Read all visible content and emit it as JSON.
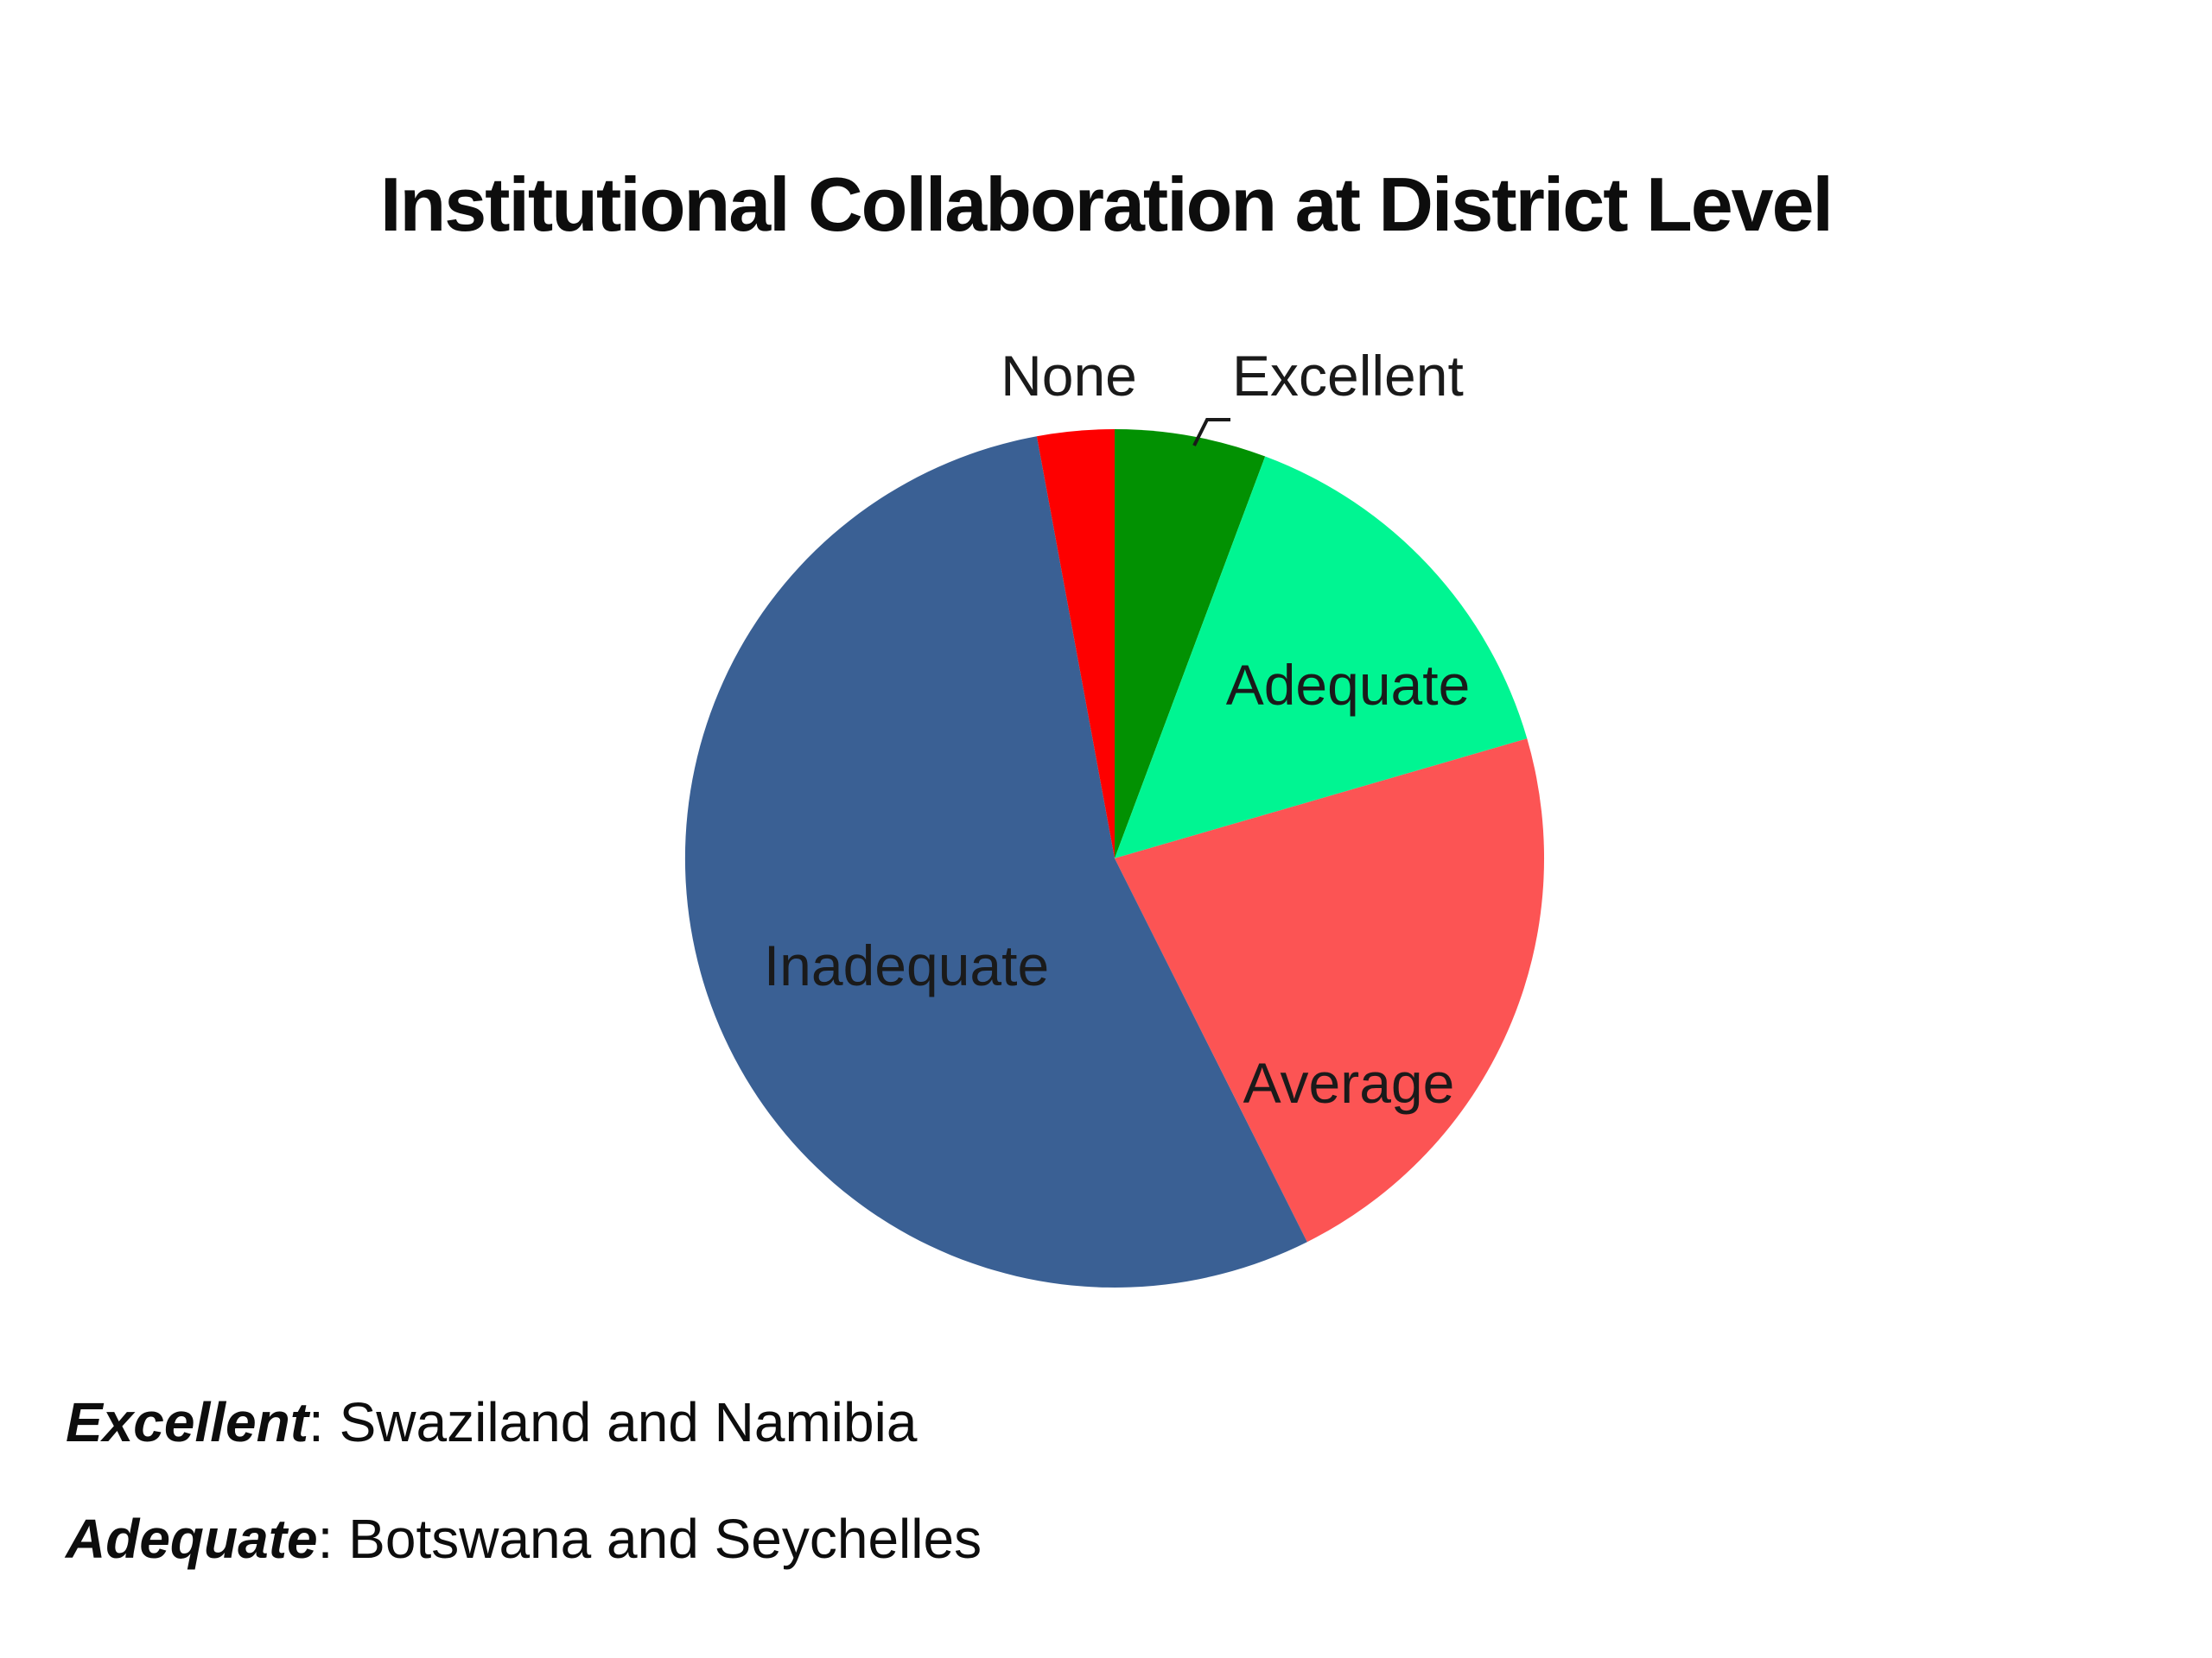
{
  "title": "Institutional Collaboration at District Level",
  "chart_data": {
    "type": "pie",
    "title": "Institutional Collaboration at District Level",
    "direction": "clockwise",
    "start_angle_deg": 0,
    "legend_position": "labels-on-chart",
    "slices": [
      {
        "label": "Excellent",
        "value_pct": 5.7,
        "color": "#029102",
        "label_style": "outside-with-leader"
      },
      {
        "label": "Adequate",
        "value_pct": 14.8,
        "color": "#00F592",
        "label_style": "inside"
      },
      {
        "label": "Average",
        "value_pct": 22.1,
        "color": "#FC5454",
        "label_style": "inside"
      },
      {
        "label": "Inadequate",
        "value_pct": 54.5,
        "color": "#3A6094",
        "label_style": "inside"
      },
      {
        "label": "None",
        "value_pct": 2.9,
        "color": "#FE0000",
        "label_style": "outside"
      }
    ]
  },
  "footnotes": [
    {
      "term": "Excellent",
      "rest": ": Swaziland and Namibia"
    },
    {
      "term": "Adequate",
      "rest": ": Botswana and Seychelles"
    }
  ]
}
